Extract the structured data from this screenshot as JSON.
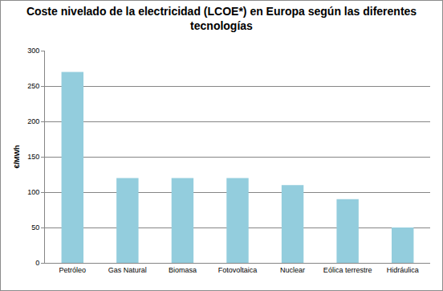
{
  "chart_data": {
    "type": "bar",
    "title": "Coste nivelado de la electricidad (LCOE*) en Europa según las diferentes\ntecnologías",
    "y_label": "€/MWh",
    "categories": [
      "Petróleo",
      "Gas Natural",
      "Biomasa",
      "Fotovoltaica",
      "Nuclear",
      "Eólica terrestre",
      "Hidráulica"
    ],
    "values": [
      270,
      120,
      120,
      120,
      110,
      90,
      50
    ],
    "color": "#93cddd",
    "ylim": [
      0,
      300
    ],
    "yticks": [
      0,
      50,
      100,
      150,
      200,
      250,
      300
    ],
    "grid": true
  }
}
